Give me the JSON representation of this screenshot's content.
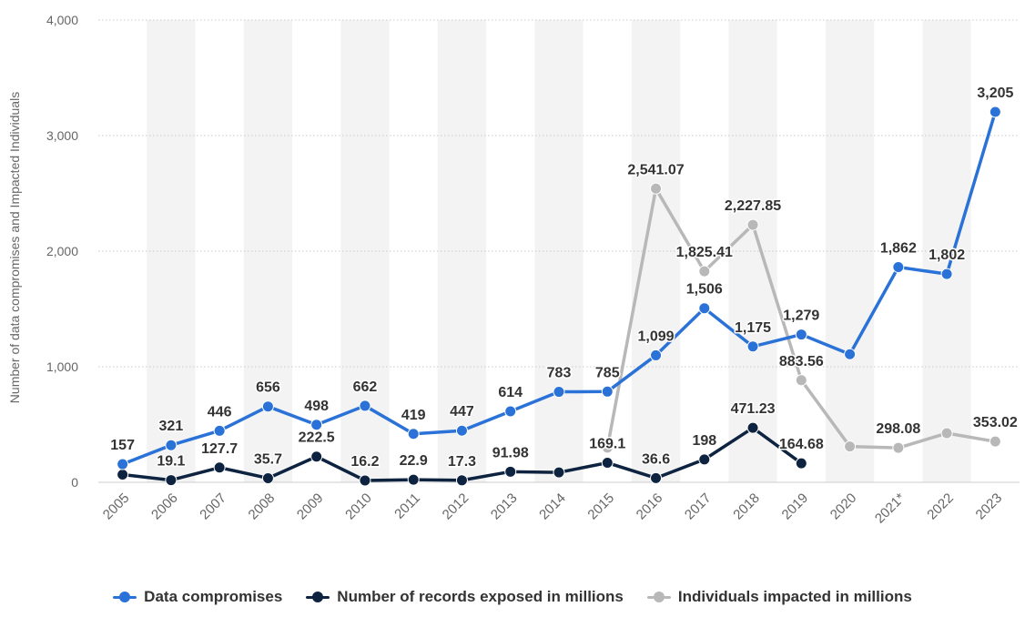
{
  "chart_data": {
    "type": "line",
    "title": "",
    "xlabel": "",
    "ylabel": "Number of data compromises and Impacted Individuals",
    "ylim": [
      0,
      4000
    ],
    "yticks": [
      0,
      1000,
      2000,
      3000,
      4000
    ],
    "ytick_labels": [
      "0",
      "1,000",
      "2,000",
      "3,000",
      "4,000"
    ],
    "grid": true,
    "legend_position": "bottom",
    "categories": [
      "2005",
      "2006",
      "2007",
      "2008",
      "2009",
      "2010",
      "2011",
      "2012",
      "2013",
      "2014",
      "2015",
      "2016",
      "2017",
      "2018",
      "2019",
      "2020",
      "2021*",
      "2022",
      "2023"
    ],
    "series": [
      {
        "name": "Data compromises",
        "color": "#2a72d8",
        "values": [
          157,
          321,
          446,
          656,
          498,
          662,
          419,
          447,
          614,
          783,
          785,
          1099,
          1506,
          1175,
          1279,
          1108,
          1862,
          1802,
          3205
        ],
        "labels": [
          "157",
          "321",
          "446",
          "656",
          "498",
          "662",
          "419",
          "447",
          "614",
          "783",
          "785",
          "1,099",
          "1,506",
          "1,175",
          "1,279",
          "",
          "1,862",
          "1,802",
          "3,205"
        ]
      },
      {
        "name": "Number of records exposed in millions",
        "color": "#0d2340",
        "values": [
          66.9,
          19.1,
          127.7,
          35.7,
          222.5,
          16.2,
          22.9,
          17.3,
          91.98,
          85.61,
          169.1,
          36.6,
          198,
          471.23,
          164.68,
          null,
          null,
          null,
          null
        ],
        "labels": [
          "",
          "19.1",
          "127.7",
          "35.7",
          "222.5",
          "16.2",
          "22.9",
          "17.3",
          "91.98",
          "",
          "169.1",
          "36.6",
          "198",
          "471.23",
          "164.68",
          "",
          "",
          "",
          ""
        ]
      },
      {
        "name": "Individuals impacted in millions",
        "color": "#b8b8b8",
        "values": [
          null,
          null,
          null,
          null,
          null,
          null,
          null,
          null,
          null,
          null,
          300,
          2541.07,
          1825.41,
          2227.85,
          883.56,
          310,
          298.08,
          425,
          353.02
        ],
        "labels": [
          "",
          "",
          "",
          "",
          "",
          "",
          "",
          "",
          "",
          "",
          "",
          "2,541.07",
          "1,825.41",
          "2,227.85",
          "883.56",
          "",
          "298.08",
          "",
          "353.02"
        ]
      }
    ]
  }
}
